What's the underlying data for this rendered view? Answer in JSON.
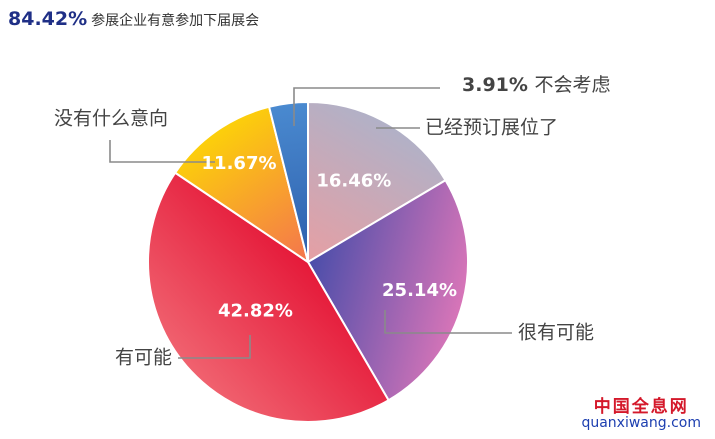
{
  "headline": {
    "percent": "84.42%",
    "text": "参展企业有意参加下届展会"
  },
  "chart_data": {
    "type": "pie",
    "title": "",
    "slices": [
      {
        "label": "已经预订展位了",
        "value": 16.46,
        "pct_label": "16.46%",
        "color_start": "#b1b1c7",
        "color_end": "#eb9da0"
      },
      {
        "label": "很有可能",
        "value": 25.14,
        "pct_label": "25.14%",
        "color_start": "#d875b8",
        "color_end": "#3b49a8"
      },
      {
        "label": "有可能",
        "value": 42.82,
        "pct_label": "42.82%",
        "color_start": "#f0626f",
        "color_end": "#e41234"
      },
      {
        "label": "没有什么意向",
        "value": 11.67,
        "pct_label": "11.67%",
        "color_start": "#fcd00a",
        "color_end": "#f36b55"
      },
      {
        "label": "不会考虑",
        "value": 3.91,
        "pct_label": "3.91%",
        "color_start": "#4a8ad0",
        "color_end": "#2a5aa8"
      }
    ],
    "start_angle": "12 o'clock",
    "direction": "clockwise"
  },
  "watermark": {
    "name": "中国全息网",
    "domain": "quanxiwang.com"
  }
}
